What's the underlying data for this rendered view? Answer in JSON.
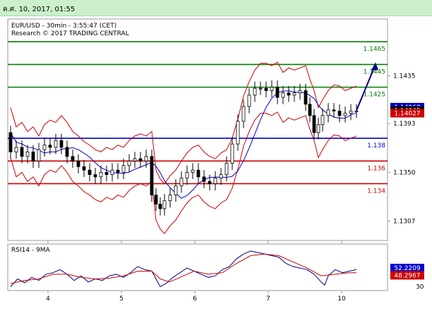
{
  "header": {
    "date_time": "ค.ศ. 10, 2017, 01:55"
  },
  "chart_data": {
    "type": "candlestick",
    "title": "EUR/USD - 30min - 3:55:47 (CET)",
    "subtitle": "Research © 2017 TRADING CENTRAL",
    "price_axis": {
      "ylim": [
        1.129,
        1.1485
      ],
      "ticks": [
        "1.1435",
        "1.1393",
        "1.1350",
        "1.1307"
      ]
    },
    "x_axis": {
      "ticks": [
        "4",
        "5",
        "6",
        "7",
        "10"
      ]
    },
    "levels": [
      {
        "label": "1.1465",
        "value": 1.1465,
        "color": "#008000",
        "kind": "target"
      },
      {
        "label": "1.1445",
        "value": 1.1445,
        "color": "#008000",
        "kind": "target"
      },
      {
        "label": "1.1425",
        "value": 1.1425,
        "color": "#008000",
        "kind": "target"
      },
      {
        "label": "1.138",
        "value": 1.138,
        "color": "#0000cc",
        "kind": "pivot"
      },
      {
        "label": "1.136",
        "value": 1.136,
        "color": "#cc0000",
        "kind": "support"
      },
      {
        "label": "1.134",
        "value": 1.134,
        "color": "#cc0000",
        "kind": "support"
      }
    ],
    "price_boxes": [
      {
        "label": "1.14068",
        "value": 1.14068,
        "bg": "#0000cc",
        "fg": "#ffffff"
      },
      {
        "label": "1.14045",
        "value": 1.14045,
        "bg": "#000000",
        "fg": "#ffffff"
      },
      {
        "label": "1.14027",
        "value": 1.14027,
        "bg": "#cc0000",
        "fg": "#ffffff"
      }
    ],
    "price_series": [
      [
        0,
        1.1385
      ],
      [
        8,
        1.1368
      ],
      [
        16,
        1.1372
      ],
      [
        24,
        1.1364
      ],
      [
        32,
        1.1368
      ],
      [
        40,
        1.136
      ],
      [
        48,
        1.137
      ],
      [
        56,
        1.1374
      ],
      [
        64,
        1.1372
      ],
      [
        72,
        1.1378
      ],
      [
        80,
        1.1372
      ],
      [
        88,
        1.1364
      ],
      [
        96,
        1.136
      ],
      [
        104,
        1.1355
      ],
      [
        112,
        1.1352
      ],
      [
        120,
        1.1348
      ],
      [
        128,
        1.1346
      ],
      [
        136,
        1.135
      ],
      [
        144,
        1.1348
      ],
      [
        152,
        1.1352
      ],
      [
        160,
        1.135
      ],
      [
        168,
        1.1356
      ],
      [
        176,
        1.136
      ],
      [
        184,
        1.1362
      ],
      [
        192,
        1.136
      ],
      [
        200,
        1.1364
      ],
      [
        206,
        1.133
      ],
      [
        212,
        1.1322
      ],
      [
        218,
        1.1318
      ],
      [
        226,
        1.1325
      ],
      [
        234,
        1.133
      ],
      [
        242,
        1.1338
      ],
      [
        250,
        1.1345
      ],
      [
        258,
        1.135
      ],
      [
        266,
        1.1352
      ],
      [
        274,
        1.1346
      ],
      [
        282,
        1.1342
      ],
      [
        290,
        1.134
      ],
      [
        298,
        1.1345
      ],
      [
        306,
        1.1348
      ],
      [
        314,
        1.1358
      ],
      [
        322,
        1.1375
      ],
      [
        330,
        1.1395
      ],
      [
        338,
        1.1408
      ],
      [
        346,
        1.1418
      ],
      [
        354,
        1.1424
      ],
      [
        362,
        1.1424
      ],
      [
        370,
        1.1422
      ],
      [
        378,
        1.1425
      ],
      [
        386,
        1.1416
      ],
      [
        394,
        1.142
      ],
      [
        402,
        1.1418
      ],
      [
        410,
        1.142
      ],
      [
        418,
        1.1422
      ],
      [
        424,
        1.141
      ],
      [
        430,
        1.14
      ],
      [
        436,
        1.1385
      ],
      [
        442,
        1.1392
      ],
      [
        450,
        1.14
      ],
      [
        458,
        1.1405
      ],
      [
        466,
        1.1404
      ],
      [
        474,
        1.14
      ],
      [
        482,
        1.1402
      ],
      [
        490,
        1.1404
      ]
    ],
    "forecast_arrow": {
      "from": [
        490,
        1.14045
      ],
      "to": [
        517,
        1.1445
      ]
    },
    "rsi": {
      "label": "RSI14 - 9MA",
      "ylim": [
        25,
        85
      ],
      "ticks": [
        "30"
      ],
      "value_boxes": [
        {
          "label": "52.2209",
          "value": 52.2209,
          "bg": "#0000cc",
          "fg": "#ffffff"
        },
        {
          "label": "48.2967",
          "value": 48.2967,
          "bg": "#cc0000",
          "fg": "#ffffff"
        }
      ],
      "series": [
        [
          0,
          30
        ],
        [
          10,
          40
        ],
        [
          20,
          35
        ],
        [
          30,
          42
        ],
        [
          40,
          38
        ],
        [
          50,
          46
        ],
        [
          60,
          48
        ],
        [
          70,
          52
        ],
        [
          80,
          46
        ],
        [
          90,
          38
        ],
        [
          100,
          44
        ],
        [
          110,
          36
        ],
        [
          120,
          40
        ],
        [
          130,
          38
        ],
        [
          140,
          44
        ],
        [
          150,
          46
        ],
        [
          160,
          42
        ],
        [
          170,
          48
        ],
        [
          180,
          56
        ],
        [
          190,
          52
        ],
        [
          200,
          50
        ],
        [
          206,
          40
        ],
        [
          212,
          30
        ],
        [
          220,
          34
        ],
        [
          230,
          42
        ],
        [
          240,
          48
        ],
        [
          250,
          54
        ],
        [
          260,
          50
        ],
        [
          270,
          46
        ],
        [
          280,
          42
        ],
        [
          290,
          44
        ],
        [
          300,
          52
        ],
        [
          310,
          56
        ],
        [
          320,
          66
        ],
        [
          330,
          72
        ],
        [
          340,
          76
        ],
        [
          350,
          74
        ],
        [
          360,
          72
        ],
        [
          370,
          70
        ],
        [
          380,
          68
        ],
        [
          390,
          60
        ],
        [
          400,
          56
        ],
        [
          410,
          54
        ],
        [
          420,
          52
        ],
        [
          430,
          46
        ],
        [
          440,
          36
        ],
        [
          445,
          32
        ],
        [
          450,
          44
        ],
        [
          460,
          52
        ],
        [
          470,
          48
        ],
        [
          480,
          50
        ],
        [
          490,
          52
        ]
      ],
      "ma": [
        [
          0,
          34
        ],
        [
          20,
          38
        ],
        [
          40,
          40
        ],
        [
          60,
          46
        ],
        [
          80,
          46
        ],
        [
          100,
          42
        ],
        [
          120,
          40
        ],
        [
          140,
          41
        ],
        [
          160,
          44
        ],
        [
          180,
          50
        ],
        [
          200,
          50
        ],
        [
          212,
          40
        ],
        [
          225,
          36
        ],
        [
          240,
          42
        ],
        [
          260,
          50
        ],
        [
          280,
          46
        ],
        [
          300,
          48
        ],
        [
          320,
          60
        ],
        [
          340,
          70
        ],
        [
          360,
          72
        ],
        [
          380,
          70
        ],
        [
          400,
          62
        ],
        [
          420,
          54
        ],
        [
          440,
          44
        ],
        [
          460,
          46
        ],
        [
          480,
          48
        ],
        [
          490,
          48
        ]
      ]
    }
  }
}
